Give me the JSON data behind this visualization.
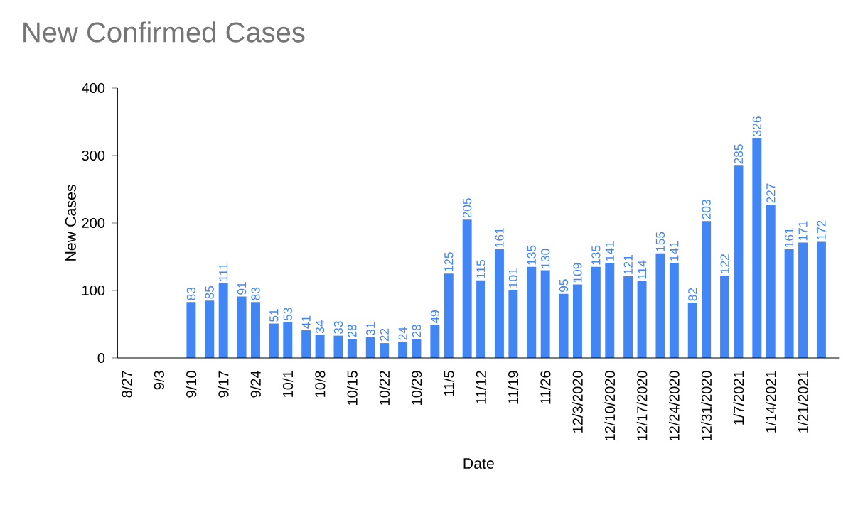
{
  "chart_data": {
    "type": "bar",
    "title": "New Confirmed Cases",
    "xlabel": "Date",
    "ylabel": "New Cases",
    "x": [
      "2020-09-10",
      "2020-09-14",
      "2020-09-17",
      "2020-09-21",
      "2020-09-24",
      "2020-09-28",
      "2020-10-01",
      "2020-10-05",
      "2020-10-08",
      "2020-10-12",
      "2020-10-15",
      "2020-10-19",
      "2020-10-22",
      "2020-10-26",
      "2020-10-29",
      "2020-11-02",
      "2020-11-05",
      "2020-11-09",
      "2020-11-12",
      "2020-11-16",
      "2020-11-19",
      "2020-11-23",
      "2020-11-26",
      "2020-11-30",
      "2020-12-03",
      "2020-12-07",
      "2020-12-10",
      "2020-12-14",
      "2020-12-17",
      "2020-12-21",
      "2020-12-24",
      "2020-12-28",
      "2020-12-31",
      "2021-01-04",
      "2021-01-07",
      "2021-01-11",
      "2021-01-14",
      "2021-01-18",
      "2021-01-21",
      "2021-01-25"
    ],
    "values": [
      83,
      85,
      111,
      91,
      83,
      51,
      53,
      41,
      34,
      33,
      28,
      31,
      22,
      24,
      28,
      49,
      125,
      205,
      115,
      161,
      101,
      135,
      130,
      95,
      109,
      135,
      141,
      121,
      114,
      155,
      141,
      82,
      203,
      122,
      285,
      326,
      227,
      161,
      171,
      172
    ],
    "color": "#4285f4",
    "data_labels": true,
    "xlim": [
      "2020-08-25",
      "2021-01-29"
    ],
    "xticks": [
      {
        "value": "2020-08-27",
        "label": "8/27"
      },
      {
        "value": "2020-09-03",
        "label": "9/3"
      },
      {
        "value": "2020-09-10",
        "label": "9/10"
      },
      {
        "value": "2020-09-17",
        "label": "9/17"
      },
      {
        "value": "2020-09-24",
        "label": "9/24"
      },
      {
        "value": "2020-10-01",
        "label": "10/1"
      },
      {
        "value": "2020-10-08",
        "label": "10/8"
      },
      {
        "value": "2020-10-15",
        "label": "10/15"
      },
      {
        "value": "2020-10-22",
        "label": "10/22"
      },
      {
        "value": "2020-10-29",
        "label": "10/29"
      },
      {
        "value": "2020-11-05",
        "label": "11/5"
      },
      {
        "value": "2020-11-12",
        "label": "11/12"
      },
      {
        "value": "2020-11-19",
        "label": "11/19"
      },
      {
        "value": "2020-11-26",
        "label": "11/26"
      },
      {
        "value": "2020-12-03",
        "label": "12/3/2020"
      },
      {
        "value": "2020-12-10",
        "label": "12/10/2020"
      },
      {
        "value": "2020-12-17",
        "label": "12/17/2020"
      },
      {
        "value": "2020-12-24",
        "label": "12/24/2020"
      },
      {
        "value": "2020-12-31",
        "label": "12/31/2020"
      },
      {
        "value": "2021-01-07",
        "label": "1/7/2021"
      },
      {
        "value": "2021-01-14",
        "label": "1/14/2021"
      },
      {
        "value": "2021-01-21",
        "label": "1/21/2021"
      }
    ],
    "ylim": [
      0,
      400
    ],
    "yticks": [
      0,
      100,
      200,
      300,
      400
    ],
    "grid": false
  }
}
